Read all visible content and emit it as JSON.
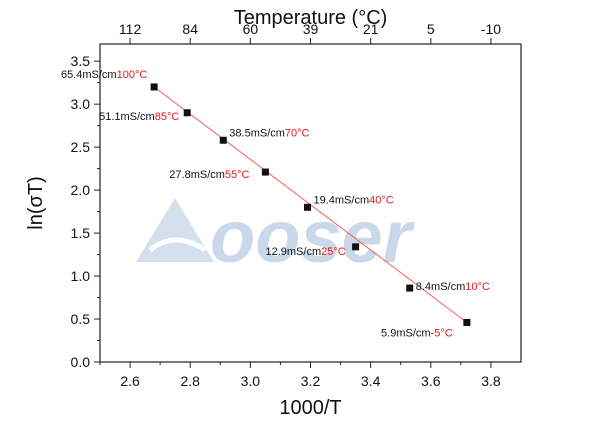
{
  "chart_data": {
    "type": "scatter",
    "xlabel": "1000/T",
    "ylabel": "ln(σT)",
    "x2label": "Temperature (°C)",
    "xlim": [
      2.5,
      3.9
    ],
    "ylim": [
      0.0,
      3.7
    ],
    "xticks": [
      "2.6",
      "2.8",
      "3.0",
      "3.2",
      "3.4",
      "3.6",
      "3.8"
    ],
    "yticks": [
      "0.0",
      "0.5",
      "1.0",
      "1.5",
      "2.0",
      "2.5",
      "3.0",
      "3.5"
    ],
    "top_ticks": [
      {
        "label": "112",
        "x": 2.6
      },
      {
        "label": "84",
        "x": 2.8
      },
      {
        "label": "60",
        "x": 3.0
      },
      {
        "label": "39",
        "x": 3.2
      },
      {
        "label": "21",
        "x": 3.4
      },
      {
        "label": "5",
        "x": 3.6
      },
      {
        "label": "-10",
        "x": 3.8
      }
    ],
    "points": [
      {
        "x": 2.68,
        "y": 3.2,
        "cond": "65.4mS/cm",
        "temp": "100°C"
      },
      {
        "x": 2.79,
        "y": 2.9,
        "cond": "51.1mS/cm",
        "temp": "85°C"
      },
      {
        "x": 2.91,
        "y": 2.58,
        "cond": "38.5mS/cm",
        "temp": "70°C"
      },
      {
        "x": 3.05,
        "y": 2.21,
        "cond": "27.8mS/cm",
        "temp": "55°C"
      },
      {
        "x": 3.19,
        "y": 1.8,
        "cond": "19.4mS/cm",
        "temp": "40°C"
      },
      {
        "x": 3.35,
        "y": 1.34,
        "cond": "12.9mS/cm",
        "temp": "25°C"
      },
      {
        "x": 3.53,
        "y": 0.86,
        "cond": "8.4mS/cm",
        "temp": "10°C"
      },
      {
        "x": 3.72,
        "y": 0.46,
        "cond": "5.9mS/cm",
        "temp": "-5°C"
      }
    ],
    "fit_line": {
      "x1": 2.68,
      "y1": 3.2,
      "x2": 3.72,
      "y2": 0.46
    },
    "grid": false,
    "colors": {
      "points": "#111111",
      "fit": "#f06060",
      "temp_label": "#e21b1b",
      "cond_label": "#111111"
    }
  },
  "watermark": {
    "text": "ooser",
    "color": "#c9d9ea"
  }
}
